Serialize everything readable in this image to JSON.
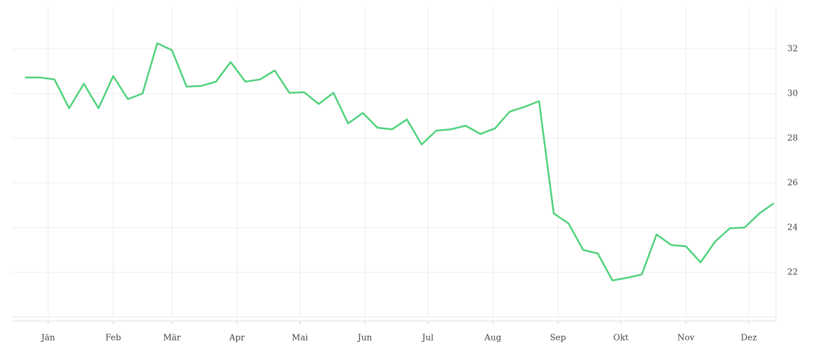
{
  "chart_data": {
    "type": "line",
    "x": [
      -11,
      -4,
      3,
      10,
      17,
      24,
      31,
      38,
      45,
      52,
      59,
      66,
      73,
      80,
      87,
      94,
      101,
      108,
      115,
      122,
      129,
      136,
      143,
      150,
      157,
      164,
      171,
      178,
      185,
      192,
      199,
      206,
      213,
      220,
      227,
      234,
      241,
      248,
      255,
      262,
      269,
      276,
      283,
      290,
      297,
      304,
      311,
      318,
      325,
      332,
      339,
      346
    ],
    "series": [
      {
        "color": "#4fd27a",
        "values": [
          30.72,
          30.72,
          30.63,
          29.34,
          30.44,
          29.34,
          30.78,
          29.75,
          30.0,
          32.25,
          31.94,
          30.31,
          30.34,
          30.53,
          31.41,
          30.53,
          30.63,
          31.03,
          30.03,
          30.06,
          29.53,
          30.03,
          28.66,
          29.13,
          28.47,
          28.4,
          28.84,
          27.72,
          28.34,
          28.4,
          28.56,
          28.19,
          28.44,
          29.19,
          29.4,
          29.66,
          24.63,
          24.19,
          23.0,
          22.84,
          21.63,
          21.75,
          21.9,
          23.69,
          23.22,
          23.16,
          22.44,
          23.38,
          23.97,
          24.0,
          24.63,
          25.09
        ]
      }
    ],
    "xlim": [
      -17.3,
      347
    ],
    "xticks": [
      {
        "value": 0,
        "label": "Jän"
      },
      {
        "value": 31,
        "label": "Feb"
      },
      {
        "value": 59,
        "label": "Mär"
      },
      {
        "value": 90,
        "label": "Apr"
      },
      {
        "value": 120,
        "label": "Mai"
      },
      {
        "value": 151,
        "label": "Jun"
      },
      {
        "value": 181,
        "label": "Jul"
      },
      {
        "value": 212,
        "label": "Aug"
      },
      {
        "value": 243,
        "label": "Sep"
      },
      {
        "value": 273,
        "label": "Okt"
      },
      {
        "value": 304,
        "label": "Nov"
      },
      {
        "value": 334,
        "label": "Dez"
      }
    ],
    "ylim": [
      20,
      33.9
    ],
    "yticks": [
      22,
      24,
      26,
      28,
      30,
      32
    ],
    "grid": true
  }
}
